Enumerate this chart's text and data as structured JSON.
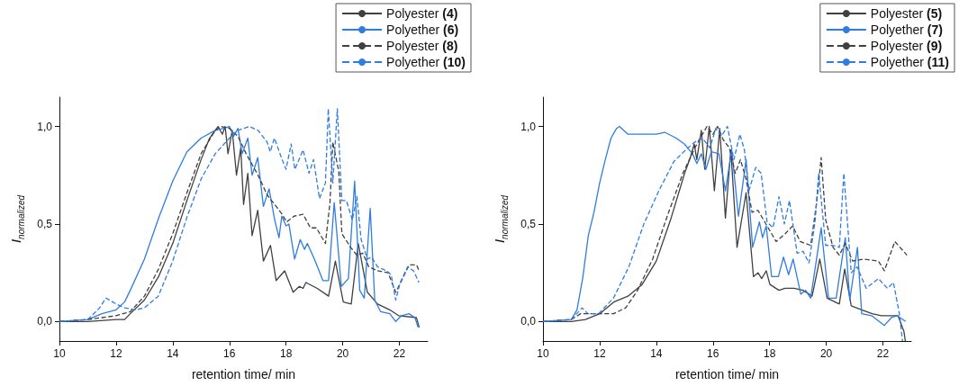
{
  "chart_data": [
    {
      "type": "line",
      "xlabel": "retention time/ min",
      "ylabel": "I$_{normalized}$",
      "xlim": [
        10,
        23
      ],
      "xticks": [
        10,
        12,
        14,
        16,
        18,
        20,
        22
      ],
      "ylim": [
        -0.1,
        1.15
      ],
      "yticks": [
        {
          "value": 0,
          "label": "0,0"
        },
        {
          "value": 0.5,
          "label": "0,5"
        },
        {
          "value": 1,
          "label": "1,0"
        }
      ],
      "grid": false,
      "legend": "top right",
      "marker": "none",
      "series": [
        {
          "name": "Polyester (4)",
          "color": "#404040",
          "line_style": "solid",
          "x": [
            10,
            11,
            12,
            12.3,
            12.5,
            13,
            13.5,
            14,
            14.5,
            15,
            15.3,
            15.6,
            15.75,
            15.85,
            15.95,
            16.1,
            16.25,
            16.4,
            16.5,
            16.65,
            16.8,
            17.0,
            17.2,
            17.45,
            17.65,
            17.95,
            18.25,
            18.47,
            18.6,
            18.7,
            19.1,
            19.5,
            19.74,
            20.02,
            20.3,
            20.55,
            20.87,
            21.23,
            21.66,
            21.97,
            22.6,
            22.7
          ],
          "values": [
            0,
            0,
            0.01,
            0.01,
            0.04,
            0.11,
            0.23,
            0.4,
            0.62,
            0.83,
            0.94,
            1.0,
            0.96,
            1.0,
            0.86,
            0.98,
            0.75,
            0.89,
            0.6,
            0.76,
            0.44,
            0.57,
            0.31,
            0.39,
            0.21,
            0.26,
            0.15,
            0.18,
            0.17,
            0.2,
            0.17,
            0.13,
            0.31,
            0.1,
            0.09,
            0.4,
            0.15,
            0.09,
            0.06,
            0.03,
            0.02,
            -0.03
          ]
        },
        {
          "name": "Polyether (6)",
          "color": "#2f7de1",
          "line_style": "solid",
          "x": [
            10,
            11,
            11.5,
            12,
            12.3,
            12.5,
            13,
            13.5,
            14,
            14.5,
            15,
            15.5,
            15.8,
            16,
            16.15,
            16.3,
            16.45,
            16.65,
            16.8,
            17.0,
            17.2,
            17.4,
            17.6,
            17.75,
            17.85,
            18.0,
            18.1,
            18.3,
            18.5,
            18.65,
            18.75,
            19.0,
            19.3,
            19.5,
            19.7,
            19.95,
            20.2,
            20.42,
            20.6,
            20.76,
            20.97,
            21.13,
            21.34,
            21.66,
            21.87,
            22.08,
            22.34,
            22.55,
            22.66
          ],
          "values": [
            0,
            0.01,
            0.04,
            0.06,
            0.1,
            0.16,
            0.32,
            0.53,
            0.72,
            0.87,
            0.94,
            0.98,
            0.99,
            1.0,
            0.95,
            0.99,
            0.86,
            0.94,
            0.75,
            0.84,
            0.59,
            0.68,
            0.52,
            0.43,
            0.54,
            0.49,
            0.5,
            0.32,
            0.42,
            0.37,
            0.4,
            0.32,
            0.21,
            0.21,
            0.61,
            0.18,
            0.22,
            0.72,
            0.16,
            0.12,
            0.58,
            0.11,
            0.05,
            0.04,
            0.0,
            0.03,
            0.04,
            0.02,
            -0.03
          ]
        },
        {
          "name": "Polyester (8)",
          "color": "#404040",
          "line_style": "dashed",
          "x": [
            10,
            11,
            11.5,
            12,
            12.5,
            13,
            13.5,
            14,
            14.5,
            15,
            15.5,
            15.7,
            16,
            16.3,
            16.59,
            17.01,
            17.33,
            17.65,
            17.86,
            18.02,
            18.28,
            18.6,
            18.86,
            19.07,
            19.39,
            19.55,
            19.65,
            19.86,
            19.97,
            20.28,
            20.5,
            20.71,
            20.92,
            21.23,
            21.6,
            21.87,
            22.08,
            22.34,
            22.61,
            22.69
          ],
          "values": [
            0,
            0.01,
            0.02,
            0.03,
            0.05,
            0.13,
            0.27,
            0.45,
            0.66,
            0.86,
            0.98,
            1.0,
            0.99,
            0.95,
            0.86,
            0.75,
            0.65,
            0.59,
            0.55,
            0.51,
            0.54,
            0.55,
            0.48,
            0.48,
            0.4,
            0.61,
            0.92,
            0.77,
            0.45,
            0.38,
            0.34,
            0.35,
            0.28,
            0.26,
            0.25,
            0.15,
            0.21,
            0.29,
            0.29,
            0.26
          ]
        },
        {
          "name": "Polyether (10)",
          "color": "#2f7de1",
          "line_style": "dashed",
          "x": [
            10,
            11,
            11.42,
            11.64,
            12,
            12.3,
            12.69,
            13,
            13.49,
            14,
            14.49,
            15,
            15.5,
            16,
            16.3,
            16.7,
            17.01,
            17.33,
            17.44,
            17.59,
            17.86,
            18,
            18.18,
            18.31,
            18.6,
            18.81,
            18.97,
            19.18,
            19.39,
            19.49,
            19.65,
            19.81,
            19.97,
            20.13,
            20.34,
            20.5,
            20.65,
            20.87,
            21.02,
            21.23,
            21.55,
            21.71,
            21.87,
            22.03,
            22.29,
            22.5,
            22.69
          ],
          "values": [
            0,
            0.01,
            0.07,
            0.12,
            0.09,
            0.07,
            0.06,
            0.07,
            0.13,
            0.31,
            0.53,
            0.73,
            0.86,
            0.94,
            0.98,
            1.0,
            0.98,
            0.92,
            0.87,
            0.94,
            0.83,
            0.78,
            0.91,
            0.78,
            0.88,
            0.76,
            0.83,
            0.63,
            0.71,
            1.09,
            0.71,
            1.09,
            0.62,
            0.62,
            0.52,
            0.64,
            0.42,
            0.32,
            0.33,
            0.28,
            0.26,
            0.24,
            0.11,
            0.2,
            0.28,
            0.26,
            0.2
          ]
        }
      ]
    },
    {
      "type": "line",
      "xlabel": "retention time/ min",
      "ylabel": "I$_{normalized}$",
      "xlim": [
        10,
        23
      ],
      "xticks": [
        10,
        12,
        14,
        16,
        18,
        20,
        22
      ],
      "ylim": [
        -0.1,
        1.15
      ],
      "yticks": [
        {
          "value": 0,
          "label": "0,0"
        },
        {
          "value": 0.5,
          "label": "0,5"
        },
        {
          "value": 1,
          "label": "1,0"
        }
      ],
      "grid": false,
      "legend": "top right",
      "marker": "none",
      "series": [
        {
          "name": "Polyester (5)",
          "color": "#404040",
          "line_style": "solid",
          "x": [
            10,
            11,
            11.5,
            12,
            12.5,
            13,
            13.5,
            14,
            14.5,
            15,
            15.2,
            15.34,
            15.43,
            15.59,
            15.71,
            15.87,
            16.05,
            16.24,
            16.44,
            16.63,
            16.85,
            17.17,
            17.43,
            17.59,
            17.72,
            17.88,
            18.01,
            18.33,
            18.55,
            18.86,
            19.18,
            19.5,
            19.77,
            20.03,
            20.46,
            20.65,
            20.88,
            21.25,
            21.62,
            21.94,
            22.26,
            22.53,
            22.74,
            22.79
          ],
          "values": [
            0,
            0,
            0.01,
            0.04,
            0.1,
            0.13,
            0.19,
            0.31,
            0.52,
            0.76,
            0.84,
            0.91,
            0.83,
            0.98,
            0.78,
            1.0,
            0.67,
            0.99,
            0.53,
            0.88,
            0.38,
            0.66,
            0.23,
            0.25,
            0.22,
            0.26,
            0.19,
            0.16,
            0.17,
            0.17,
            0.16,
            0.13,
            0.32,
            0.12,
            0.09,
            0.27,
            0.08,
            0.06,
            0.04,
            0.03,
            0.03,
            0.03,
            -0.05,
            -0.1
          ]
        },
        {
          "name": "Polyether (7)",
          "color": "#2f7de1",
          "line_style": "solid",
          "x": [
            10,
            11,
            11.2,
            11.4,
            11.6,
            11.8,
            12,
            12.2,
            12.4,
            12.6,
            12.7,
            13,
            13.5,
            14,
            14.3,
            14.7,
            14.99,
            15.28,
            15.43,
            15.59,
            15.75,
            15.94,
            16.21,
            16.44,
            16.66,
            16.9,
            17.17,
            17.4,
            17.64,
            17.75,
            17.88,
            18.07,
            18.31,
            18.49,
            18.67,
            18.83,
            19.1,
            19.27,
            19.45,
            19.82,
            20.08,
            20.35,
            20.67,
            20.83,
            21.1,
            21.25,
            21.6,
            22.05,
            22.3,
            22.5,
            22.8
          ],
          "values": [
            0,
            0.01,
            0.06,
            0.22,
            0.44,
            0.56,
            0.71,
            0.83,
            0.94,
            0.99,
            1.0,
            0.96,
            0.96,
            0.96,
            0.97,
            0.94,
            0.91,
            0.86,
            0.81,
            0.86,
            0.78,
            0.87,
            0.86,
            0.67,
            0.88,
            0.54,
            0.83,
            0.38,
            0.51,
            0.43,
            0.49,
            0.23,
            0.23,
            0.33,
            0.24,
            0.32,
            0.14,
            0.16,
            0.12,
            0.48,
            0.12,
            0.12,
            0.43,
            0.11,
            0.38,
            0.04,
            0.03,
            -0.02,
            0.02,
            0.03,
            0.0
          ]
        },
        {
          "name": "Polyester (9)",
          "color": "#404040",
          "line_style": "dashed",
          "x": [
            10,
            11,
            11.33,
            11.96,
            12.49,
            12.92,
            13.34,
            13.87,
            14.41,
            14.94,
            15.36,
            15.63,
            15.79,
            16,
            16.16,
            16.37,
            16.58,
            16.79,
            16.97,
            17.17,
            17.38,
            17.59,
            17.91,
            18.23,
            18.55,
            18.81,
            19.08,
            19.45,
            19.66,
            19.82,
            19.98,
            20.24,
            20.46,
            20.67,
            20.93,
            21.31,
            21.84,
            22.05,
            22.42,
            22.85
          ],
          "values": [
            0,
            0.01,
            0.04,
            0.04,
            0.04,
            0.07,
            0.16,
            0.32,
            0.55,
            0.76,
            0.89,
            0.96,
            1.0,
            0.96,
            1.0,
            0.93,
            0.89,
            0.76,
            0.83,
            0.73,
            0.56,
            0.57,
            0.49,
            0.41,
            0.45,
            0.49,
            0.41,
            0.39,
            0.61,
            0.84,
            0.52,
            0.38,
            0.34,
            0.4,
            0.31,
            0.32,
            0.31,
            0.26,
            0.41,
            0.34
          ]
        },
        {
          "name": "Polyether (11)",
          "color": "#2f7de1",
          "line_style": "dashed",
          "x": [
            10,
            11,
            11.38,
            11.59,
            11.96,
            12.49,
            13.03,
            13.56,
            14.09,
            14.62,
            15.04,
            15.36,
            15.63,
            15.89,
            16.1,
            16.3,
            16.51,
            16.74,
            16.95,
            17.11,
            17.27,
            17.51,
            17.7,
            17.91,
            18.12,
            18.33,
            18.52,
            18.7,
            18.97,
            19.18,
            19.39,
            19.61,
            19.73,
            19.98,
            20.24,
            20.46,
            20.62,
            20.88,
            21.09,
            21.41,
            21.84,
            22.16,
            22.37,
            22.58,
            22.69
          ],
          "values": [
            0,
            0.01,
            0.07,
            0.04,
            0.04,
            0.12,
            0.28,
            0.5,
            0.67,
            0.82,
            0.88,
            0.92,
            0.94,
            0.89,
            0.99,
            0.95,
            1.0,
            0.83,
            0.96,
            0.88,
            0.67,
            0.79,
            0.76,
            0.51,
            0.48,
            0.64,
            0.5,
            0.62,
            0.35,
            0.36,
            0.3,
            0.52,
            0.76,
            0.39,
            0.39,
            0.38,
            0.76,
            0.25,
            0.28,
            0.17,
            0.22,
            0.17,
            0.2,
            0.04,
            -0.1
          ]
        }
      ]
    }
  ]
}
